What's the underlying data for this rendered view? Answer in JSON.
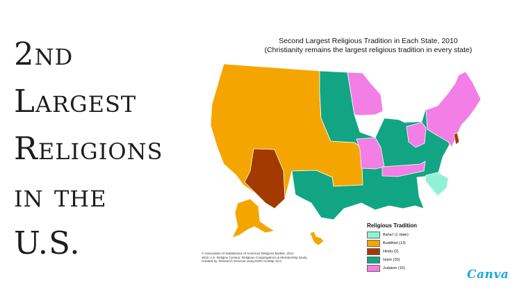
{
  "headline": {
    "lines": [
      "2nd",
      "Largest",
      "Religions",
      "in the",
      "U.S."
    ]
  },
  "map": {
    "title": "Second Largest Religious Tradition in Each State, 2010",
    "subtitle": "(Christianity remains the largest religious tradition in every state)",
    "legend": {
      "title": "Religious Tradition",
      "items": [
        {
          "label": "Baha'i (1 state)",
          "color": "#8ff2d6"
        },
        {
          "label": "Buddhist (13)",
          "color": "#f5a500"
        },
        {
          "label": "Hindu (2)",
          "color": "#a33a00"
        },
        {
          "label": "Islam (20)",
          "color": "#11a583"
        },
        {
          "label": "Judaism (15)",
          "color": "#f27ee6"
        }
      ]
    },
    "credits": [
      "© Association of Statisticians of American Religious Bodies, 2012",
      "2010 U.S. Religion Census: Religious Congregations & Membership Study",
      "Created by: Research Services using ESRI ArcMap 10.0"
    ]
  },
  "colors": {
    "bahai": "#8ff2d6",
    "buddhist": "#f5a500",
    "hindu": "#a33a00",
    "islam": "#11a583",
    "judaism": "#f27ee6"
  },
  "logo": {
    "text": "Canva"
  }
}
